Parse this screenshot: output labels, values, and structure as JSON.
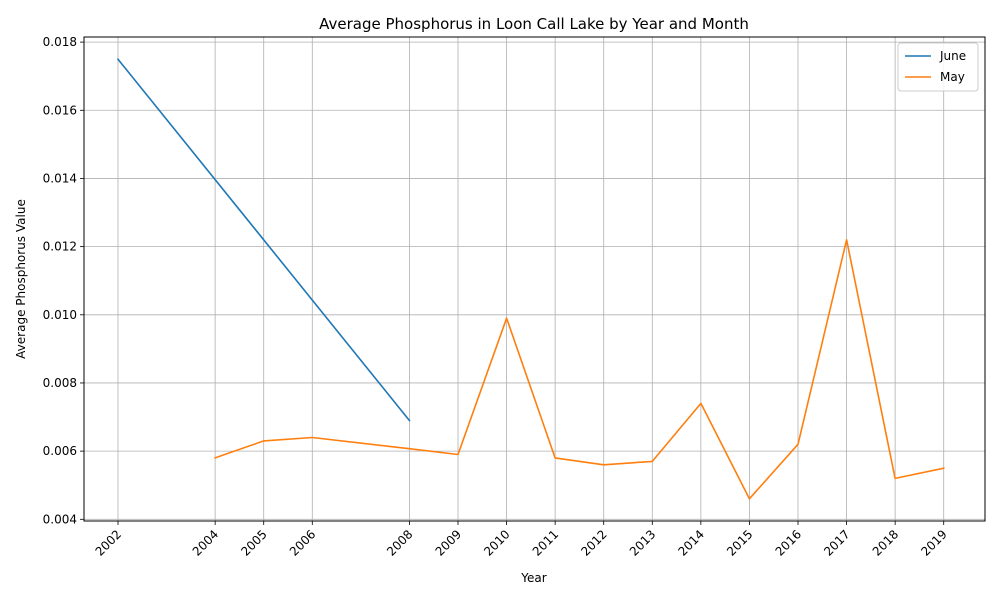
{
  "chart_data": {
    "type": "line",
    "title": "Average Phosphorus in Loon Call Lake by Year and Month",
    "xlabel": "Year",
    "ylabel": "Average Phosphorus Value",
    "xlim": [
      2001.3,
      2019.85
    ],
    "ylim": [
      0.00395,
      0.01815
    ],
    "x_ticks": [
      2002,
      2004,
      2005,
      2006,
      2008,
      2009,
      2010,
      2011,
      2012,
      2013,
      2014,
      2015,
      2016,
      2017,
      2018,
      2019
    ],
    "y_ticks": [
      0.004,
      0.006,
      0.008,
      0.01,
      0.012,
      0.014,
      0.016,
      0.018
    ],
    "y_tick_labels": [
      "0.004",
      "0.006",
      "0.008",
      "0.010",
      "0.012",
      "0.014",
      "0.016",
      "0.018"
    ],
    "grid": true,
    "legend_position": "top-right",
    "series": [
      {
        "name": "June",
        "color": "#1f77b4",
        "x": [
          2002,
          2008
        ],
        "values": [
          0.0175,
          0.0069
        ]
      },
      {
        "name": "May",
        "color": "#ff7f0e",
        "x": [
          2004,
          2005,
          2006,
          2008,
          2009,
          2010,
          2011,
          2012,
          2013,
          2014,
          2015,
          2016,
          2017,
          2018,
          2019
        ],
        "values": [
          0.0058,
          0.0063,
          0.0064,
          0.00607,
          0.0059,
          0.0099,
          0.0058,
          0.0056,
          0.0057,
          0.0074,
          0.0046,
          0.0062,
          0.0122,
          0.0052,
          0.0055
        ]
      }
    ]
  }
}
